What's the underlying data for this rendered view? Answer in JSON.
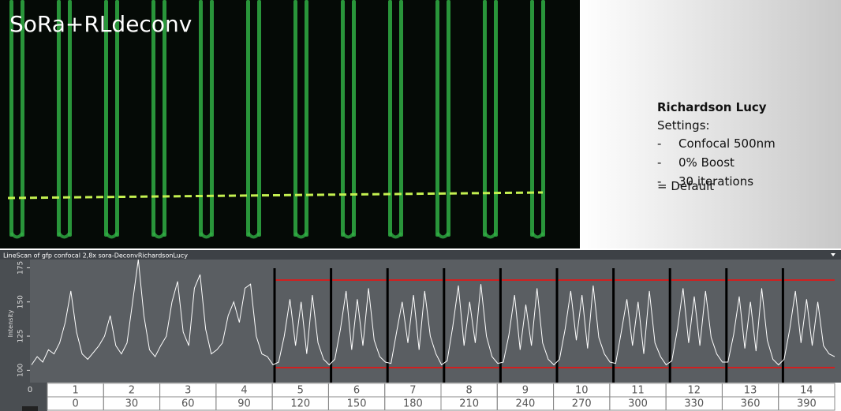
{
  "image": {
    "label": "SoRa+RLdeconv"
  },
  "notes": {
    "title": "Richardson Lucy",
    "subtitle": "Settings:",
    "items": [
      "Confocal 500nm",
      "0% Boost",
      "30 iterations"
    ],
    "bullet": "-",
    "result": "= Default"
  },
  "chart_data": {
    "type": "line",
    "title": "LineScan of gfp confocal 2,8x sora-DeconvRichardsonLucy",
    "y_label": "Intensity",
    "x_origin_label": "0",
    "ylim": [
      91,
      181
    ],
    "yticks": [
      100,
      125,
      150,
      175
    ],
    "series": [
      {
        "name": "LineScan",
        "color": "#ffffff",
        "values": [
          104,
          110,
          106,
          115,
          112,
          120,
          135,
          158,
          128,
          112,
          108,
          113,
          118,
          125,
          140,
          118,
          112,
          120,
          150,
          181,
          140,
          115,
          110,
          118,
          125,
          150,
          165,
          128,
          118,
          160,
          170,
          130,
          112,
          115,
          120,
          140,
          150,
          135,
          160,
          163,
          125,
          112,
          110,
          104,
          106,
          125,
          152,
          118,
          150,
          112,
          155,
          120,
          108,
          104,
          108,
          130,
          158,
          115,
          152,
          118,
          160,
          122,
          110,
          106,
          105,
          128,
          150,
          120,
          155,
          115,
          158,
          125,
          112,
          104,
          107,
          132,
          162,
          118,
          150,
          120,
          163,
          125,
          110,
          105,
          106,
          126,
          155,
          115,
          148,
          118,
          160,
          120,
          108,
          104,
          108,
          130,
          158,
          122,
          155,
          116,
          162,
          124,
          112,
          106,
          105,
          128,
          152,
          118,
          150,
          112,
          158,
          120,
          110,
          104,
          107,
          130,
          160,
          120,
          154,
          118,
          158,
          124,
          112,
          106,
          106,
          126,
          154,
          116,
          150,
          114,
          160,
          122,
          108,
          104,
          108,
          130,
          158,
          120,
          152,
          118,
          150,
          118,
          112,
          110
        ]
      }
    ]
  },
  "scale": {
    "indices": [
      1,
      2,
      3,
      4,
      5,
      6,
      7,
      8,
      9,
      10,
      11,
      12,
      13,
      14
    ],
    "positions": [
      0,
      30,
      60,
      90,
      120,
      150,
      180,
      210,
      240,
      270,
      300,
      330,
      360,
      390
    ]
  }
}
